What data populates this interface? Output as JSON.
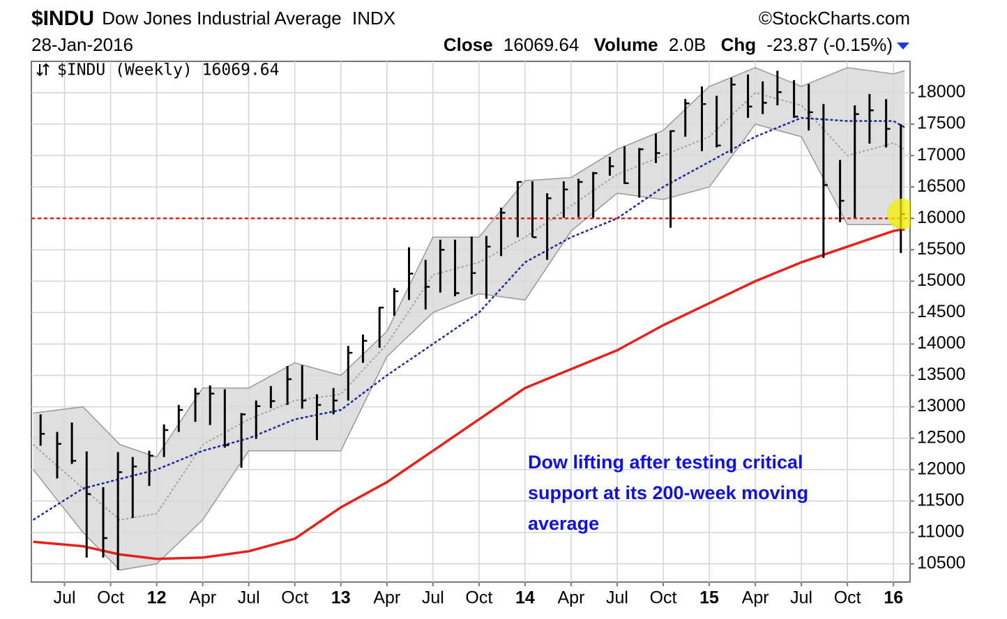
{
  "chart_data": {
    "type": "ohlc",
    "symbol": "$INDU",
    "title": "Dow Jones Industrial Average",
    "exchange": "INDX",
    "credit": "©StockCharts.com",
    "date": "28-Jan-2016",
    "close_label": "Close",
    "close_value": "16069.64",
    "volume_label": "Volume",
    "volume_value": "2.0B",
    "change_label": "Chg",
    "change_value": "-23.87 (-0.15%)",
    "legend": "$INDU (Weekly) 16069.64",
    "annotation": [
      "Dow lifting after testing critical",
      "support at its 200-week moving",
      "average"
    ],
    "support_line": 16000,
    "support_color": "#e0201a",
    "grid": true,
    "xlim": [
      2011.32,
      2016.09
    ],
    "xticks": [
      {
        "value": 2011.5,
        "label": "Jul"
      },
      {
        "value": 2011.75,
        "label": "Oct"
      },
      {
        "value": 2012.0,
        "label": "12"
      },
      {
        "value": 2012.25,
        "label": "Apr"
      },
      {
        "value": 2012.5,
        "label": "Jul"
      },
      {
        "value": 2012.75,
        "label": "Oct"
      },
      {
        "value": 2013.0,
        "label": "13"
      },
      {
        "value": 2013.25,
        "label": "Apr"
      },
      {
        "value": 2013.5,
        "label": "Jul"
      },
      {
        "value": 2013.75,
        "label": "Oct"
      },
      {
        "value": 2014.0,
        "label": "14"
      },
      {
        "value": 2014.25,
        "label": "Apr"
      },
      {
        "value": 2014.5,
        "label": "Jul"
      },
      {
        "value": 2014.75,
        "label": "Oct"
      },
      {
        "value": 2015.0,
        "label": "15"
      },
      {
        "value": 2015.25,
        "label": "Apr"
      },
      {
        "value": 2015.5,
        "label": "Jul"
      },
      {
        "value": 2015.75,
        "label": "Oct"
      },
      {
        "value": 2016.0,
        "label": "16"
      }
    ],
    "ylim": [
      10210,
      18500
    ],
    "yticks": [
      10500,
      11000,
      11500,
      12000,
      12500,
      13000,
      13500,
      14000,
      14500,
      15000,
      15500,
      16000,
      16500,
      17000,
      17500,
      18000
    ],
    "bars": {
      "color": "#000000",
      "x": [
        2011.37,
        2011.46,
        2011.54,
        2011.62,
        2011.71,
        2011.79,
        2011.87,
        2011.96,
        2012.04,
        2012.12,
        2012.21,
        2012.29,
        2012.37,
        2012.46,
        2012.54,
        2012.62,
        2012.71,
        2012.79,
        2012.87,
        2012.96,
        2013.04,
        2013.12,
        2013.21,
        2013.29,
        2013.37,
        2013.46,
        2013.54,
        2013.62,
        2013.71,
        2013.79,
        2013.87,
        2013.96,
        2014.04,
        2014.12,
        2014.21,
        2014.29,
        2014.37,
        2014.46,
        2014.54,
        2014.62,
        2014.71,
        2014.79,
        2014.87,
        2014.96,
        2015.04,
        2015.12,
        2015.21,
        2015.29,
        2015.37,
        2015.46,
        2015.54,
        2015.62,
        2015.71,
        2015.79,
        2015.87,
        2015.96,
        2016.04
      ],
      "high": [
        12880,
        12600,
        12750,
        12290,
        11720,
        12280,
        12200,
        12300,
        12720,
        13030,
        13300,
        13340,
        13280,
        12900,
        13100,
        13330,
        13650,
        13660,
        13200,
        13300,
        13970,
        14150,
        14590,
        14890,
        15540,
        15340,
        15660,
        15660,
        15710,
        15720,
        16170,
        16590,
        16590,
        16400,
        16590,
        16630,
        16740,
        16980,
        17150,
        17120,
        17350,
        17400,
        17900,
        18100,
        17950,
        18240,
        18290,
        18180,
        18350,
        18200,
        18140,
        17820,
        16930,
        17800,
        17980,
        17900,
        17500
      ],
      "low": [
        12380,
        11860,
        12090,
        10600,
        10600,
        10400,
        11230,
        11740,
        12200,
        12600,
        12760,
        12710,
        12350,
        12030,
        12490,
        12980,
        13030,
        12970,
        12470,
        12880,
        13100,
        13700,
        13940,
        14450,
        14700,
        14550,
        14820,
        14760,
        14790,
        14720,
        15400,
        15700,
        15700,
        15340,
        16010,
        16020,
        16010,
        16680,
        16550,
        16330,
        16880,
        15850,
        17300,
        17070,
        17130,
        17040,
        17600,
        17660,
        17800,
        17600,
        17400,
        15370,
        15940,
        16010,
        17190,
        17130,
        15450
      ],
      "close": [
        12570,
        12410,
        12140,
        11610,
        10910,
        11960,
        12050,
        12220,
        12630,
        12950,
        13210,
        13210,
        12390,
        12880,
        13010,
        13090,
        13440,
        13100,
        13030,
        13100,
        13860,
        14050,
        14580,
        14840,
        15120,
        14910,
        15500,
        14810,
        15130,
        15550,
        16090,
        16580,
        15700,
        16320,
        16460,
        16580,
        16720,
        16830,
        16560,
        17100,
        17040,
        17390,
        17830,
        17820,
        17160,
        18130,
        17780,
        17840,
        18010,
        17620,
        17690,
        16530,
        16280,
        17660,
        17720,
        17425,
        16070
      ]
    },
    "indicators": {
      "x": [
        2011.33,
        2011.6,
        2011.8,
        2012.0,
        2012.25,
        2012.5,
        2012.75,
        2013.0,
        2013.25,
        2013.5,
        2013.75,
        2014.0,
        2014.25,
        2014.5,
        2014.75,
        2015.0,
        2015.25,
        2015.5,
        2015.75,
        2016.0,
        2016.06
      ],
      "band_color": "#d9d9d9",
      "upper_band": [
        12900,
        13000,
        12400,
        12200,
        13300,
        13300,
        13700,
        13500,
        14200,
        15700,
        15700,
        16600,
        16650,
        17100,
        17400,
        18100,
        18400,
        18100,
        18400,
        18300,
        18350
      ],
      "lower_band": [
        12000,
        11000,
        10400,
        10500,
        11200,
        12300,
        12300,
        12300,
        13800,
        14500,
        14800,
        14700,
        15800,
        16400,
        16300,
        16500,
        17500,
        17300,
        15900,
        15900,
        15800
      ],
      "ma_20_color": "#a0a0a0",
      "ma_20": [
        12400,
        11700,
        11200,
        11300,
        12400,
        12800,
        13100,
        13200,
        14000,
        15100,
        15300,
        15700,
        16200,
        16700,
        17000,
        17300,
        18000,
        17800,
        17000,
        17200,
        17100
      ],
      "ma_50_color": "#1a2a9c",
      "ma_50": [
        11200,
        11700,
        11850,
        12000,
        12300,
        12500,
        12800,
        12950,
        13500,
        14000,
        14500,
        15300,
        15700,
        16000,
        16500,
        16900,
        17300,
        17600,
        17550,
        17550,
        17450
      ],
      "ma_200_color": "#e8201a",
      "ma_200": [
        10850,
        10780,
        10650,
        10580,
        10600,
        10700,
        10900,
        11400,
        11800,
        12300,
        12800,
        13300,
        13600,
        13900,
        14300,
        14650,
        15000,
        15300,
        15550,
        15800,
        15830
      ]
    }
  }
}
